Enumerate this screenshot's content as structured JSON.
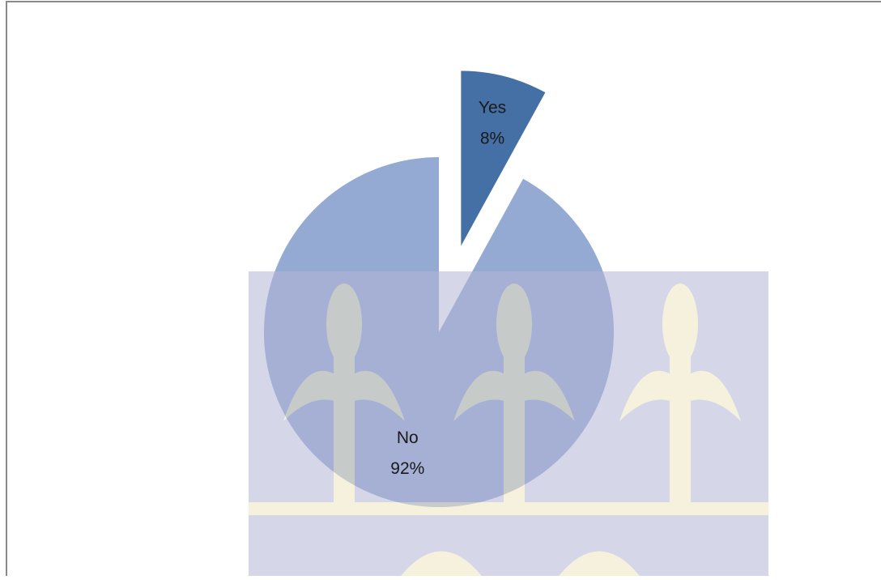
{
  "chart_data": {
    "type": "pie",
    "categories": [
      "Yes",
      "No"
    ],
    "values": [
      8,
      92
    ],
    "value_labels": [
      "8%",
      "92%"
    ],
    "colors": [
      "#4470a6",
      "#94aad3"
    ]
  }
}
